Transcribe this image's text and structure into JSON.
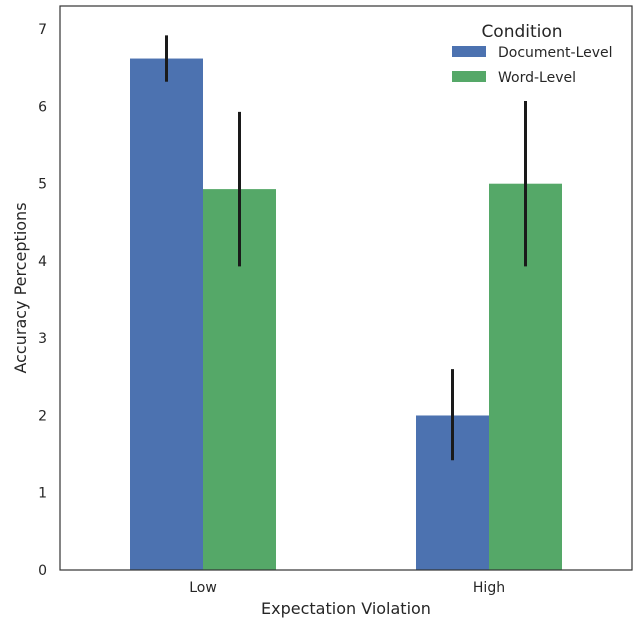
{
  "chart_data": {
    "type": "bar",
    "categories": [
      "Low",
      "High"
    ],
    "series": [
      {
        "name": "Document-Level",
        "color": "#4c72b0",
        "values": [
          6.62,
          2.0
        ],
        "error_low": [
          6.32,
          1.42
        ],
        "error_high": [
          6.92,
          2.6
        ]
      },
      {
        "name": "Word-Level",
        "color": "#55a868",
        "values": [
          4.93,
          5.0
        ],
        "error_low": [
          3.93,
          3.93
        ],
        "error_high": [
          5.93,
          6.07
        ]
      }
    ],
    "xlabel": "Expectation Violation",
    "ylabel": "Accuracy Perceptions",
    "ylim": [
      0,
      7.3
    ],
    "yticks": [
      0,
      1,
      2,
      3,
      4,
      5,
      6,
      7
    ],
    "legend_title": "Condition",
    "legend_position": "top-right",
    "grid": false
  }
}
